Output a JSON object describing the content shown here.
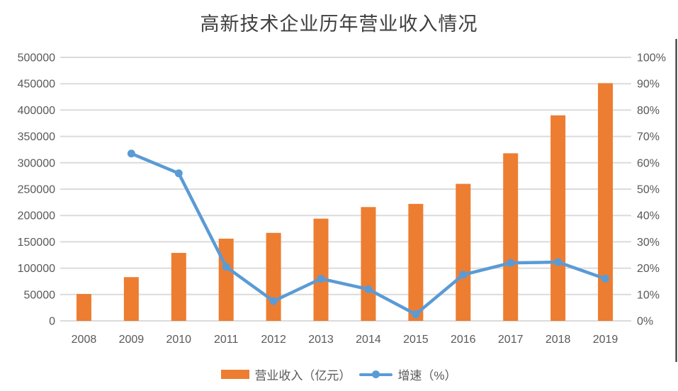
{
  "chart_data": {
    "type": "bar",
    "subtype": "bar-line-combo",
    "title": "高新技术企业历年营业收入情况",
    "categories": [
      "2008",
      "2009",
      "2010",
      "2011",
      "2012",
      "2013",
      "2014",
      "2015",
      "2016",
      "2017",
      "2018",
      "2019"
    ],
    "series": [
      {
        "name": "营业收入（亿元）",
        "type": "bar",
        "axis": "left",
        "color": "#ED7D31",
        "values": [
          51000,
          83000,
          129000,
          156000,
          167000,
          194000,
          216000,
          222000,
          260000,
          318000,
          390000,
          451000
        ]
      },
      {
        "name": "增速（%）",
        "type": "line",
        "axis": "right",
        "color": "#5B9BD5",
        "values": [
          null,
          63.5,
          56,
          20.5,
          7.5,
          16,
          12,
          2.5,
          17.5,
          22,
          22.3,
          16
        ]
      }
    ],
    "axes": {
      "left": {
        "min": 0,
        "max": 500000,
        "step": 50000,
        "tick_labels": [
          "0",
          "50000",
          "100000",
          "150000",
          "200000",
          "250000",
          "300000",
          "350000",
          "400000",
          "450000",
          "500000"
        ]
      },
      "right": {
        "min": 0,
        "max": 100,
        "step": 10,
        "tick_labels": [
          "0%",
          "10%",
          "20%",
          "30%",
          "40%",
          "50%",
          "60%",
          "70%",
          "80%",
          "90%",
          "100%"
        ]
      }
    },
    "grid": true,
    "legend_position": "bottom"
  },
  "legend": {
    "items": [
      {
        "label": "营业收入（亿元）",
        "marker": "bar-swatch"
      },
      {
        "label": "增速（%）",
        "marker": "line-dot"
      }
    ]
  },
  "colors": {
    "bar": "#ED7D31",
    "line": "#5B9BD5",
    "gridline": "#DBDBDB",
    "axis_text": "#595959",
    "title_text": "#3F3F3F",
    "right_border": "#262626",
    "background": "#FFFFFF"
  }
}
